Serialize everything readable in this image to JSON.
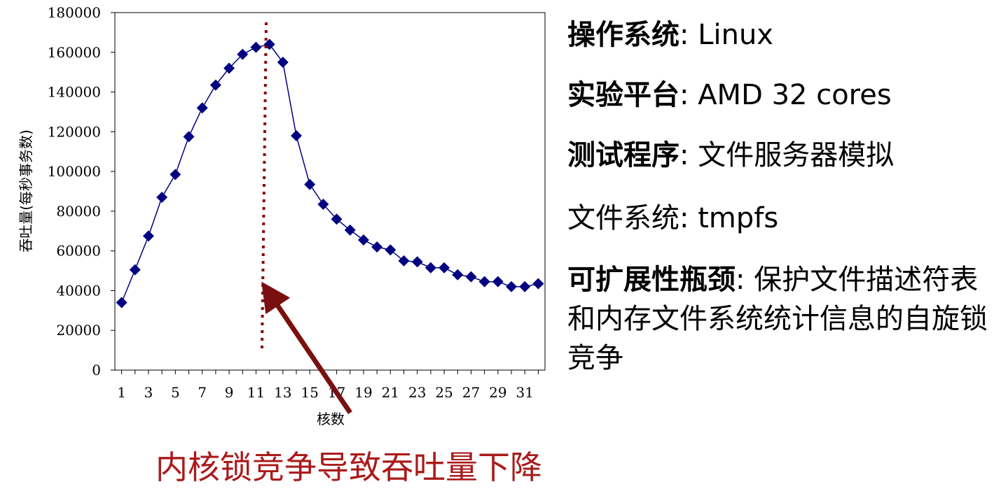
{
  "chart_data": {
    "type": "line",
    "xlabel": "核数",
    "ylabel": "吞吐量(每秒事务数)",
    "x": [
      1,
      2,
      3,
      4,
      5,
      6,
      7,
      8,
      9,
      10,
      11,
      12,
      13,
      14,
      15,
      16,
      17,
      18,
      19,
      20,
      21,
      22,
      23,
      24,
      25,
      26,
      27,
      28,
      29,
      30,
      31,
      32
    ],
    "x_tick_labels": [
      "1",
      "3",
      "5",
      "7",
      "9",
      "11",
      "13",
      "15",
      "17",
      "19",
      "21",
      "23",
      "25",
      "27",
      "29",
      "31"
    ],
    "values": [
      34000,
      50500,
      67500,
      87000,
      98500,
      117500,
      132000,
      143500,
      152000,
      159000,
      162500,
      164000,
      155000,
      118000,
      93500,
      83500,
      76000,
      70500,
      65500,
      62000,
      60500,
      55000,
      54500,
      51500,
      51500,
      48000,
      47000,
      44500,
      44500,
      42000,
      42000,
      43500
    ],
    "ylim": [
      0,
      180000
    ],
    "y_ticks": [
      0,
      20000,
      40000,
      60000,
      80000,
      100000,
      120000,
      140000,
      160000,
      180000
    ],
    "marker": "diamond",
    "series_color": "#000080",
    "peak_line_color": "#8b0000",
    "arrow_color": "#7a0f0f",
    "grid": false
  },
  "info": {
    "os_label": "操作系统",
    "os_value": ": Linux",
    "platform_label": "实验平台",
    "platform_value": ": AMD 32 cores",
    "program_label": "测试程序",
    "program_value": ": 文件服务器模拟",
    "fs_label": "文件系统",
    "fs_value": ": tmpfs",
    "bottleneck_label": "可扩展性瓶颈",
    "bottleneck_value": ": 保护文件描述符表和内存文件系统统计信息的自旋锁竞争"
  },
  "caption": "内核锁竞争导致吞吐量下降",
  "caption_color": "#aa1b1b"
}
